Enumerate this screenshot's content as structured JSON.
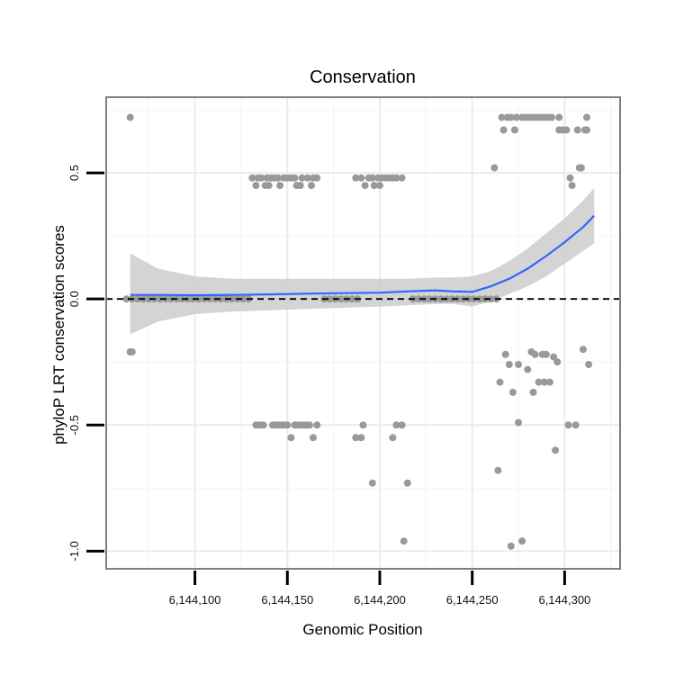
{
  "chart_data": {
    "type": "scatter",
    "title": "Conservation",
    "xlabel": "Genomic Position",
    "ylabel": "phyloP LRT conservation scores",
    "xlim": [
      6144052,
      6144330
    ],
    "ylim": [
      -1.07,
      0.8
    ],
    "x_ticks": [
      6144100,
      6144150,
      6144200,
      6144250,
      6144300
    ],
    "x_tick_labels": [
      "6,144,100",
      "6,144,150",
      "6,144,200",
      "6,144,250",
      "6,144,300"
    ],
    "y_ticks": [
      -1.0,
      -0.5,
      0.0,
      0.5
    ],
    "y_tick_labels": [
      "-1.0",
      "-0.5",
      "0.0",
      "0.5"
    ],
    "reference_line": 0,
    "colors": {
      "points": "#999999",
      "smooth": "#3366ff",
      "band": "#cccccc",
      "frame": "#7f7f7f",
      "grid": "#ebebeb",
      "refline": "#000000"
    },
    "points": [
      [
        6144065,
        0.72
      ],
      [
        6144065,
        -0.21
      ],
      [
        6144066,
        -0.21
      ],
      [
        6144063,
        0
      ],
      [
        6144066,
        0
      ],
      [
        6144069,
        0
      ],
      [
        6144072,
        0
      ],
      [
        6144075,
        0
      ],
      [
        6144078,
        0
      ],
      [
        6144081,
        0
      ],
      [
        6144084,
        0
      ],
      [
        6144087,
        0
      ],
      [
        6144090,
        0
      ],
      [
        6144093,
        0
      ],
      [
        6144096,
        0
      ],
      [
        6144099,
        0
      ],
      [
        6144102,
        0
      ],
      [
        6144105,
        0
      ],
      [
        6144108,
        0
      ],
      [
        6144111,
        0
      ],
      [
        6144114,
        0
      ],
      [
        6144117,
        0
      ],
      [
        6144120,
        0
      ],
      [
        6144123,
        0
      ],
      [
        6144126,
        0
      ],
      [
        6144129,
        0
      ],
      [
        6144131,
        0.48
      ],
      [
        6144133,
        0.45
      ],
      [
        6144134,
        0.48
      ],
      [
        6144136,
        0.48
      ],
      [
        6144138,
        0.45
      ],
      [
        6144139,
        0.48
      ],
      [
        6144140,
        0.45
      ],
      [
        6144141,
        0.48
      ],
      [
        6144143,
        0.48
      ],
      [
        6144145,
        0.48
      ],
      [
        6144146,
        0.45
      ],
      [
        6144148,
        0.48
      ],
      [
        6144150,
        0.48
      ],
      [
        6144152,
        0.48
      ],
      [
        6144154,
        0.48
      ],
      [
        6144155,
        0.45
      ],
      [
        6144157,
        0.45
      ],
      [
        6144158,
        0.48
      ],
      [
        6144161,
        0.48
      ],
      [
        6144163,
        0.45
      ],
      [
        6144164,
        0.48
      ],
      [
        6144166,
        0.48
      ],
      [
        6144133,
        -0.5
      ],
      [
        6144135,
        -0.5
      ],
      [
        6144137,
        -0.5
      ],
      [
        6144142,
        -0.5
      ],
      [
        6144144,
        -0.5
      ],
      [
        6144146,
        -0.5
      ],
      [
        6144148,
        -0.5
      ],
      [
        6144150,
        -0.5
      ],
      [
        6144152,
        -0.55
      ],
      [
        6144154,
        -0.5
      ],
      [
        6144156,
        -0.5
      ],
      [
        6144158,
        -0.5
      ],
      [
        6144160,
        -0.5
      ],
      [
        6144162,
        -0.5
      ],
      [
        6144164,
        -0.55
      ],
      [
        6144166,
        -0.5
      ],
      [
        6144170,
        0
      ],
      [
        6144173,
        0
      ],
      [
        6144176,
        0
      ],
      [
        6144179,
        0
      ],
      [
        6144182,
        0
      ],
      [
        6144185,
        0
      ],
      [
        6144188,
        0
      ],
      [
        6144187,
        0.48
      ],
      [
        6144190,
        0.48
      ],
      [
        6144192,
        0.45
      ],
      [
        6144194,
        0.48
      ],
      [
        6144196,
        0.48
      ],
      [
        6144197,
        0.45
      ],
      [
        6144199,
        0.48
      ],
      [
        6144200,
        0.45
      ],
      [
        6144201,
        0.48
      ],
      [
        6144203,
        0.48
      ],
      [
        6144205,
        0.48
      ],
      [
        6144207,
        0.48
      ],
      [
        6144209,
        0.48
      ],
      [
        6144212,
        0.48
      ],
      [
        6144187,
        -0.55
      ],
      [
        6144190,
        -0.55
      ],
      [
        6144191,
        -0.5
      ],
      [
        6144196,
        -0.73
      ],
      [
        6144207,
        -0.55
      ],
      [
        6144209,
        -0.5
      ],
      [
        6144212,
        -0.5
      ],
      [
        6144213,
        -0.96
      ],
      [
        6144215,
        -0.73
      ],
      [
        6144218,
        0
      ],
      [
        6144221,
        0
      ],
      [
        6144224,
        0
      ],
      [
        6144227,
        0
      ],
      [
        6144230,
        0
      ],
      [
        6144233,
        0
      ],
      [
        6144236,
        0
      ],
      [
        6144239,
        0
      ],
      [
        6144242,
        0
      ],
      [
        6144245,
        0
      ],
      [
        6144248,
        0
      ],
      [
        6144251,
        0
      ],
      [
        6144254,
        0
      ],
      [
        6144257,
        0
      ],
      [
        6144260,
        0
      ],
      [
        6144263,
        0
      ],
      [
        6144262,
        0.52
      ],
      [
        6144264,
        -0.68
      ],
      [
        6144265,
        -0.33
      ],
      [
        6144266,
        0.72
      ],
      [
        6144267,
        0.67
      ],
      [
        6144268,
        -0.22
      ],
      [
        6144269,
        0.72
      ],
      [
        6144270,
        -0.26
      ],
      [
        6144271,
        0.72
      ],
      [
        6144271,
        -0.98
      ],
      [
        6144272,
        -0.37
      ],
      [
        6144273,
        0.67
      ],
      [
        6144274,
        0.72
      ],
      [
        6144275,
        -0.26
      ],
      [
        6144275,
        -0.49
      ],
      [
        6144277,
        0.72
      ],
      [
        6144277,
        -0.96
      ],
      [
        6144279,
        0.72
      ],
      [
        6144280,
        -0.28
      ],
      [
        6144281,
        0.72
      ],
      [
        6144282,
        -0.21
      ],
      [
        6144283,
        0.72
      ],
      [
        6144283,
        -0.37
      ],
      [
        6144284,
        -0.22
      ],
      [
        6144285,
        0.72
      ],
      [
        6144286,
        -0.33
      ],
      [
        6144287,
        0.72
      ],
      [
        6144288,
        -0.22
      ],
      [
        6144289,
        0.72
      ],
      [
        6144289,
        -0.33
      ],
      [
        6144290,
        -0.22
      ],
      [
        6144291,
        0.72
      ],
      [
        6144292,
        -0.33
      ],
      [
        6144293,
        0.72
      ],
      [
        6144294,
        -0.23
      ],
      [
        6144295,
        -0.6
      ],
      [
        6144296,
        -0.25
      ],
      [
        6144297,
        0.72
      ],
      [
        6144297,
        0.67
      ],
      [
        6144299,
        0.67
      ],
      [
        6144301,
        0.67
      ],
      [
        6144302,
        -0.5
      ],
      [
        6144303,
        0.48
      ],
      [
        6144304,
        0.45
      ],
      [
        6144306,
        -0.5
      ],
      [
        6144307,
        0.67
      ],
      [
        6144308,
        0.52
      ],
      [
        6144309,
        0.52
      ],
      [
        6144310,
        -0.2
      ],
      [
        6144311,
        0.67
      ],
      [
        6144312,
        0.72
      ],
      [
        6144312,
        0.67
      ],
      [
        6144313,
        -0.26
      ]
    ],
    "smooth": [
      [
        6144065,
        0.016
      ],
      [
        6144080,
        0.016
      ],
      [
        6144100,
        0.015
      ],
      [
        6144120,
        0.016
      ],
      [
        6144140,
        0.018
      ],
      [
        6144160,
        0.021
      ],
      [
        6144180,
        0.023
      ],
      [
        6144200,
        0.025
      ],
      [
        6144215,
        0.03
      ],
      [
        6144230,
        0.034
      ],
      [
        6144240,
        0.03
      ],
      [
        6144250,
        0.028
      ],
      [
        6144260,
        0.05
      ],
      [
        6144270,
        0.08
      ],
      [
        6144280,
        0.12
      ],
      [
        6144290,
        0.17
      ],
      [
        6144300,
        0.225
      ],
      [
        6144310,
        0.285
      ],
      [
        6144316,
        0.33
      ]
    ],
    "band_upper": [
      [
        6144065,
        0.18
      ],
      [
        6144080,
        0.12
      ],
      [
        6144100,
        0.09
      ],
      [
        6144120,
        0.08
      ],
      [
        6144140,
        0.08
      ],
      [
        6144160,
        0.08
      ],
      [
        6144180,
        0.08
      ],
      [
        6144200,
        0.08
      ],
      [
        6144215,
        0.08
      ],
      [
        6144230,
        0.085
      ],
      [
        6144240,
        0.085
      ],
      [
        6144250,
        0.09
      ],
      [
        6144260,
        0.11
      ],
      [
        6144270,
        0.15
      ],
      [
        6144280,
        0.2
      ],
      [
        6144290,
        0.26
      ],
      [
        6144300,
        0.32
      ],
      [
        6144310,
        0.39
      ],
      [
        6144316,
        0.44
      ]
    ],
    "band_lower": [
      [
        6144065,
        -0.14
      ],
      [
        6144080,
        -0.09
      ],
      [
        6144100,
        -0.06
      ],
      [
        6144120,
        -0.05
      ],
      [
        6144140,
        -0.045
      ],
      [
        6144160,
        -0.04
      ],
      [
        6144180,
        -0.035
      ],
      [
        6144200,
        -0.03
      ],
      [
        6144215,
        -0.025
      ],
      [
        6144230,
        -0.02
      ],
      [
        6144240,
        -0.02
      ],
      [
        6144250,
        -0.03
      ],
      [
        6144260,
        -0.01
      ],
      [
        6144270,
        0.02
      ],
      [
        6144280,
        0.05
      ],
      [
        6144290,
        0.09
      ],
      [
        6144300,
        0.14
      ],
      [
        6144310,
        0.19
      ],
      [
        6144316,
        0.22
      ]
    ]
  }
}
